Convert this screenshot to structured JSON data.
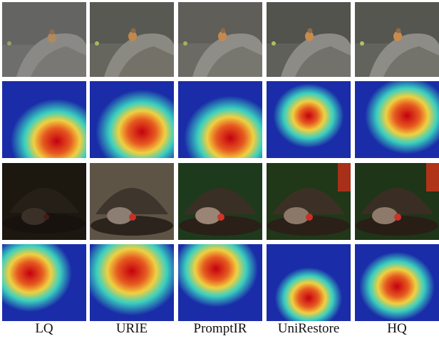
{
  "columns": [
    {
      "label": "LQ"
    },
    {
      "label": "URIE"
    },
    {
      "label": "PromptIR"
    },
    {
      "label": "UniRestore"
    },
    {
      "label": "HQ"
    }
  ],
  "rows": [
    {
      "kind": "photo-rock-bird"
    },
    {
      "kind": "heatmap-rock-bird"
    },
    {
      "kind": "photo-feeder-bird"
    },
    {
      "kind": "heatmap-feeder-bird"
    }
  ],
  "colors": {
    "heatmap_low": "#1a2ca8",
    "heatmap_mid": "#3ad0c0",
    "heatmap_high": "#c40010",
    "rock": "#5d5d5d",
    "feeder": "#3a2a1f"
  }
}
